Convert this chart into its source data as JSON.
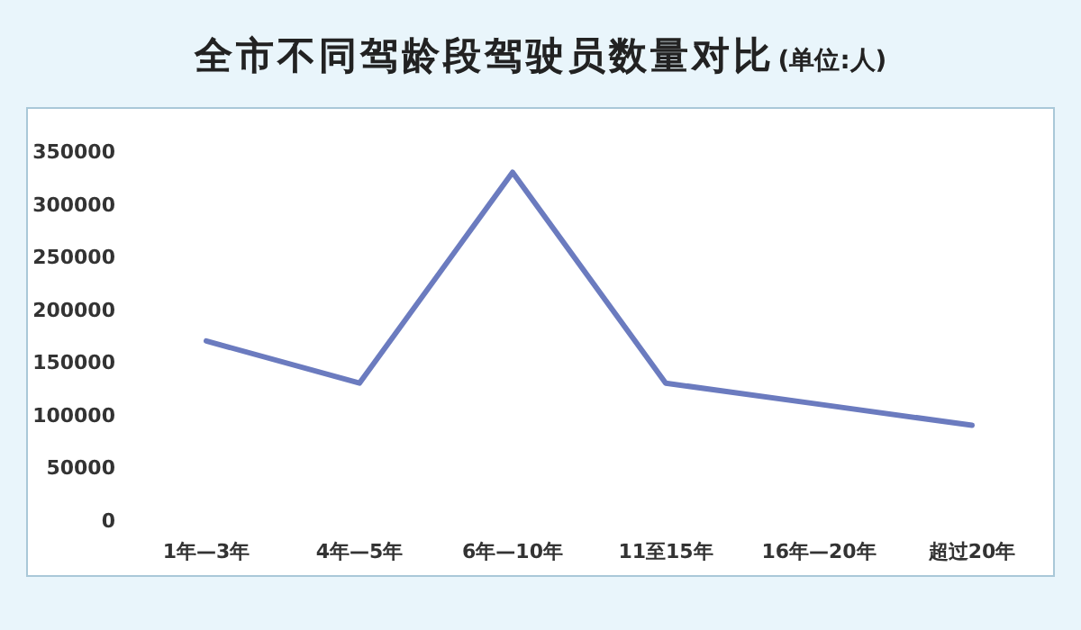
{
  "chart_data": {
    "type": "line",
    "title": "全市不同驾龄段驾驶员数量对比",
    "subtitle": "(单位:人)",
    "categories": [
      "1年—3年",
      "4年—5年",
      "6年—10年",
      "11至15年",
      "16年—20年",
      "超过20年"
    ],
    "series": [
      {
        "color": "#6b7bbf",
        "values": [
          170000,
          130000,
          330000,
          130000,
          110000,
          90000
        ]
      }
    ],
    "ylim": [
      0,
      350000
    ],
    "yticks": [
      0,
      50000,
      100000,
      150000,
      200000,
      250000,
      300000,
      350000
    ],
    "line_style": "solid"
  }
}
